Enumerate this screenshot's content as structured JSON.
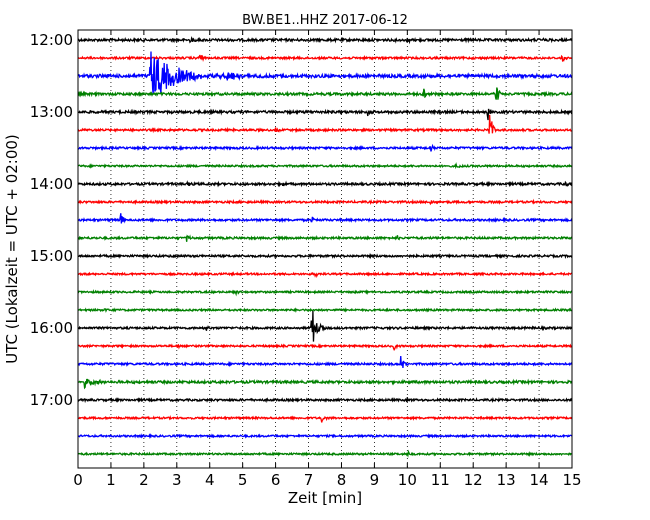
{
  "chart_data": {
    "type": "line",
    "title": "BW.BE1..HHZ 2017-06-12",
    "xlabel": "Zeit  [min]",
    "ylabel": "UTC (Lokalzeit = UTC + 02:00)",
    "xlim": [
      0,
      15
    ],
    "x_ticks": [
      "0",
      "1",
      "2",
      "3",
      "4",
      "5",
      "6",
      "7",
      "8",
      "9",
      "10",
      "11",
      "12",
      "13",
      "14",
      "15"
    ],
    "y_ticks": [
      {
        "label": "12:00",
        "row": 0
      },
      {
        "label": "13:00",
        "row": 4
      },
      {
        "label": "14:00",
        "row": 8
      },
      {
        "label": "15:00",
        "row": 12
      },
      {
        "label": "16:00",
        "row": 16
      },
      {
        "label": "17:00",
        "row": 20
      }
    ],
    "grid": "vertical-dotted",
    "colors": [
      "#000000",
      "#ff0000",
      "#0000ff",
      "#008000"
    ],
    "trace_interval_min": 15,
    "traces": [
      {
        "start": "12:00",
        "color": "#000000",
        "noise": 1.2,
        "events": [
          {
            "t": 3.4,
            "amp": 3
          },
          {
            "t": 10.0,
            "amp": 3
          },
          {
            "t": 14.1,
            "amp": 2
          }
        ]
      },
      {
        "start": "12:15",
        "color": "#ff0000",
        "noise": 1.0,
        "events": [
          {
            "t": 3.7,
            "amp": 6
          },
          {
            "t": 14.7,
            "amp": 5
          }
        ]
      },
      {
        "start": "12:30",
        "color": "#0000ff",
        "noise": 1.6,
        "events": [
          {
            "t": 2.2,
            "amp": 28,
            "dur": 2.5
          },
          {
            "t": 4.5,
            "amp": 4,
            "dur": 1.5
          }
        ]
      },
      {
        "start": "12:45",
        "color": "#008000",
        "noise": 1.2,
        "events": [
          {
            "t": 10.5,
            "amp": 9
          },
          {
            "t": 12.7,
            "amp": 16
          }
        ]
      },
      {
        "start": "13:00",
        "color": "#000000",
        "noise": 1.2,
        "events": [
          {
            "t": 8.8,
            "amp": 4
          },
          {
            "t": 12.45,
            "amp": 9
          }
        ]
      },
      {
        "start": "13:15",
        "color": "#ff0000",
        "noise": 1.0,
        "events": [
          {
            "t": 6.0,
            "amp": 3
          },
          {
            "t": 12.5,
            "amp": 24,
            "dur": 0.3
          }
        ]
      },
      {
        "start": "13:30",
        "color": "#0000ff",
        "noise": 1.0,
        "events": [
          {
            "t": 10.7,
            "amp": 5
          }
        ]
      },
      {
        "start": "13:45",
        "color": "#008000",
        "noise": 0.9,
        "events": [
          {
            "t": 11.5,
            "amp": 4
          }
        ]
      },
      {
        "start": "14:00",
        "color": "#000000",
        "noise": 1.1,
        "events": [
          {
            "t": 3.3,
            "amp": 3
          },
          {
            "t": 6.2,
            "amp": 3
          },
          {
            "t": 14.8,
            "amp": 3
          }
        ]
      },
      {
        "start": "14:15",
        "color": "#ff0000",
        "noise": 1.0,
        "events": [
          {
            "t": 10.7,
            "amp": 3
          }
        ]
      },
      {
        "start": "14:30",
        "color": "#0000ff",
        "noise": 1.0,
        "events": [
          {
            "t": 1.3,
            "amp": 8
          },
          {
            "t": 7.1,
            "amp": 5
          }
        ]
      },
      {
        "start": "14:45",
        "color": "#008000",
        "noise": 1.0,
        "events": [
          {
            "t": 3.3,
            "amp": 4
          },
          {
            "t": 9.7,
            "amp": 3
          }
        ]
      },
      {
        "start": "15:00",
        "color": "#000000",
        "noise": 1.0,
        "events": [
          {
            "t": 2.7,
            "amp": 2
          },
          {
            "t": 15.0,
            "amp": 4
          }
        ]
      },
      {
        "start": "15:15",
        "color": "#ff0000",
        "noise": 0.9,
        "events": [
          {
            "t": 7.2,
            "amp": 4
          }
        ]
      },
      {
        "start": "15:30",
        "color": "#008000",
        "noise": 0.9,
        "events": [
          {
            "t": 4.8,
            "amp": 2
          }
        ]
      },
      {
        "start": "15:45",
        "color": "#008000",
        "noise": 0.9,
        "events": [
          {
            "t": 0.8,
            "amp": 2
          }
        ]
      },
      {
        "start": "16:00",
        "color": "#000000",
        "noise": 1.0,
        "events": [
          {
            "t": 3.9,
            "amp": 3
          },
          {
            "t": 7.1,
            "amp": 22,
            "dur": 0.5
          }
        ]
      },
      {
        "start": "16:15",
        "color": "#ff0000",
        "noise": 0.9,
        "events": [
          {
            "t": 3.0,
            "amp": 3
          },
          {
            "t": 9.6,
            "amp": 6
          }
        ]
      },
      {
        "start": "16:30",
        "color": "#0000ff",
        "noise": 1.0,
        "events": [
          {
            "t": 9.8,
            "amp": 12
          }
        ]
      },
      {
        "start": "16:45",
        "color": "#008000",
        "noise": 1.2,
        "events": [
          {
            "t": 0.2,
            "amp": 5,
            "dur": 1.0
          }
        ]
      },
      {
        "start": "17:00",
        "color": "#000000",
        "noise": 1.0,
        "events": [
          {
            "t": 10.0,
            "amp": 3
          }
        ]
      },
      {
        "start": "17:15",
        "color": "#ff0000",
        "noise": 0.9,
        "events": [
          {
            "t": 7.4,
            "amp": 5
          }
        ]
      },
      {
        "start": "17:30",
        "color": "#0000ff",
        "noise": 0.9,
        "events": []
      },
      {
        "start": "17:45",
        "color": "#008000",
        "noise": 0.9,
        "events": [
          {
            "t": 10.0,
            "amp": 3
          }
        ]
      }
    ]
  }
}
